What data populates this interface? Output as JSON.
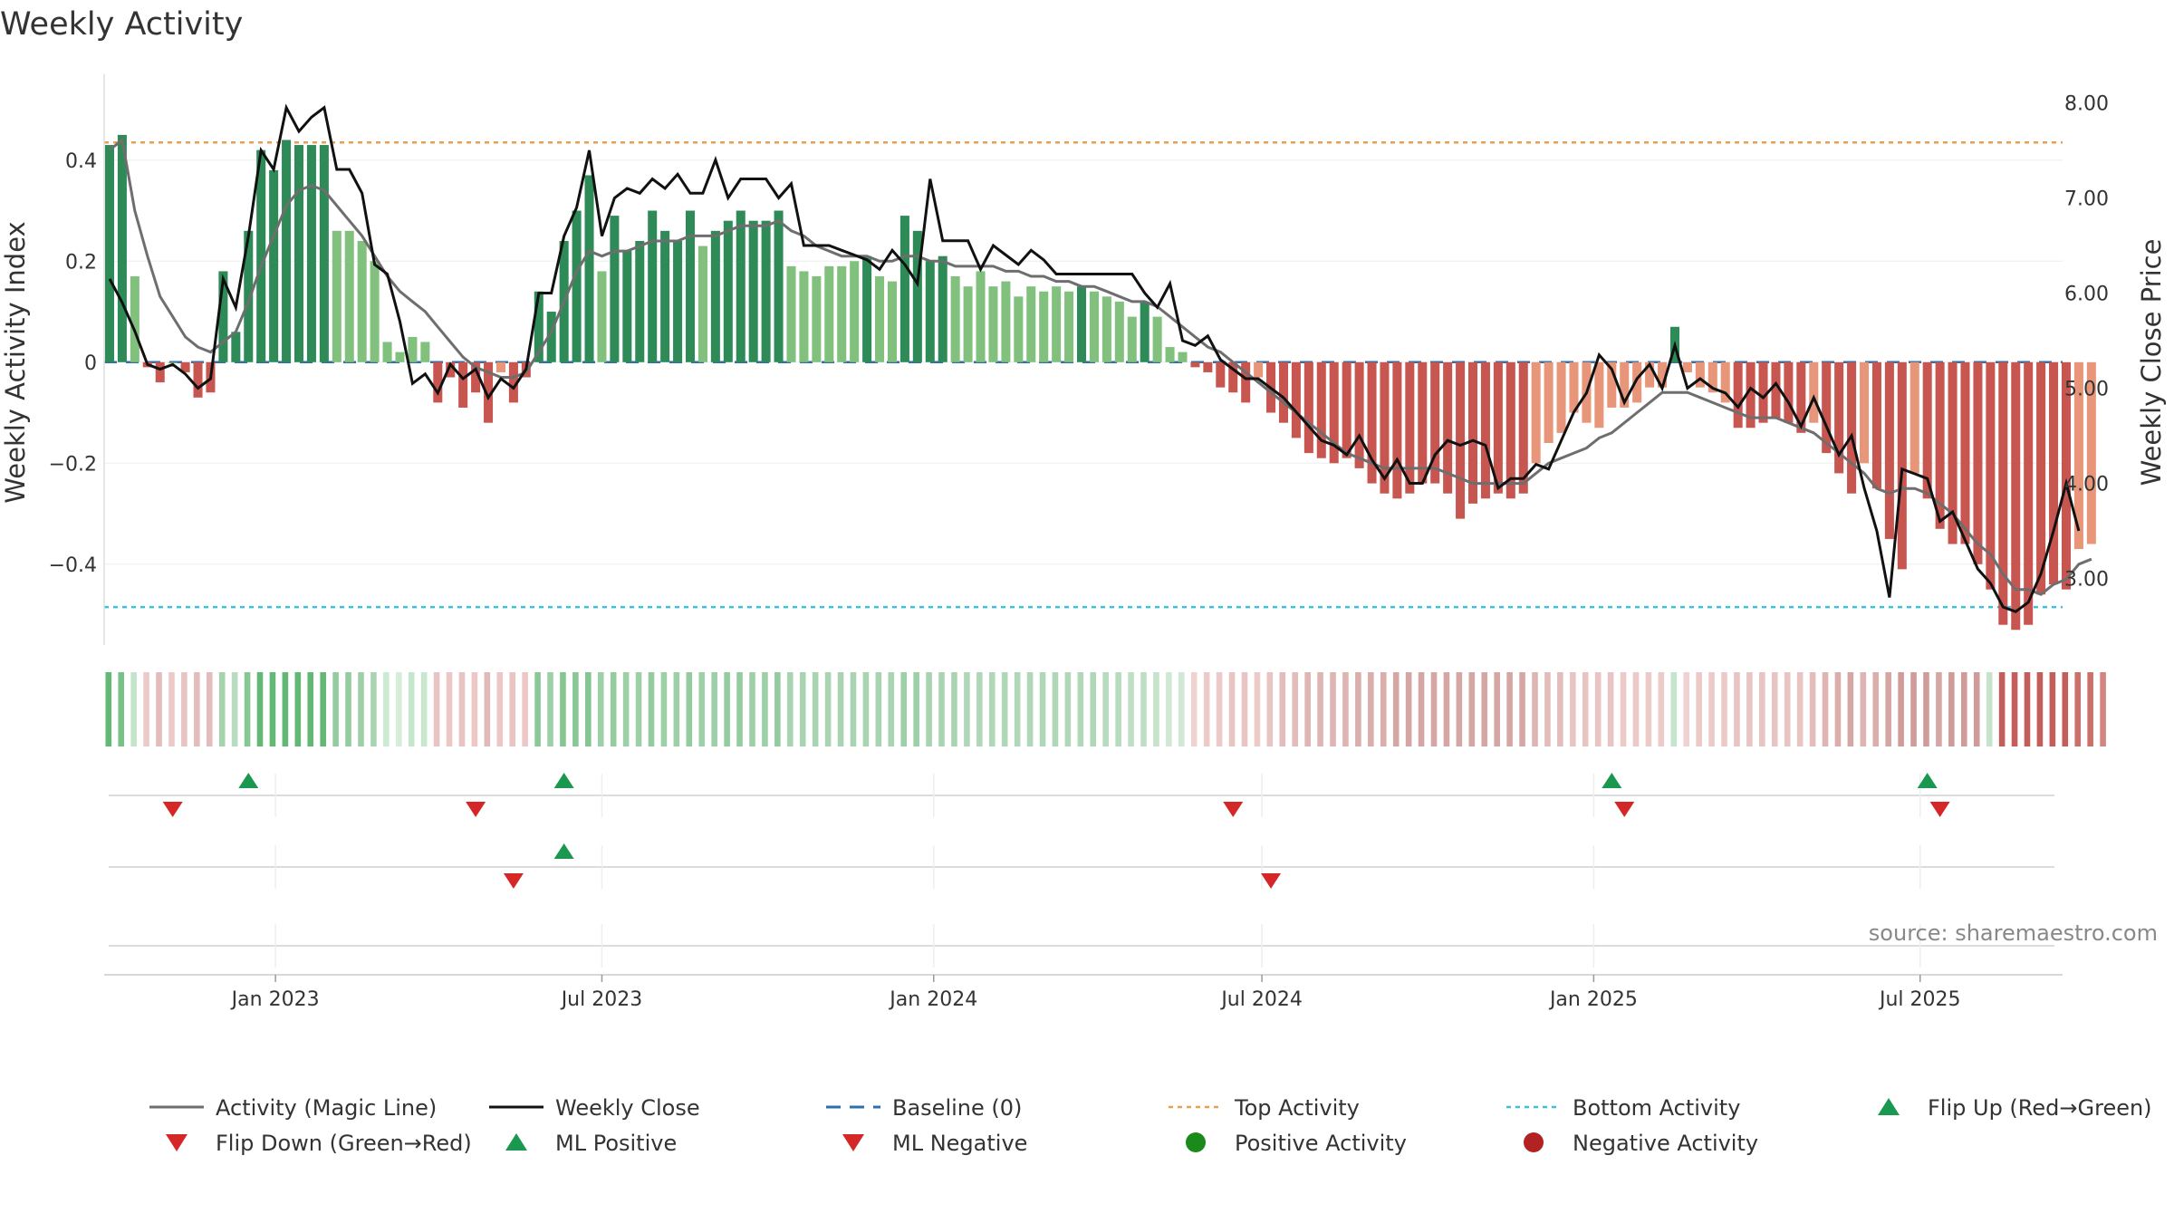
{
  "chart_data": {
    "type": "bar",
    "title": "Weekly Activity",
    "ylabel": "Weekly Activity Index",
    "y2label": "Weekly Close Price",
    "ylim": [
      -0.56,
      0.57
    ],
    "y2lim": [
      2.3,
      8.3
    ],
    "yticks": [
      {
        "value": 0.4,
        "label": "0.4"
      },
      {
        "value": 0.2,
        "label": "0.2"
      },
      {
        "value": 0,
        "label": "0"
      },
      {
        "value": -0.2,
        "label": "−0.2"
      },
      {
        "value": -0.4,
        "label": "−0.4"
      }
    ],
    "y2ticks": [
      {
        "value": 8,
        "label": "8.00"
      },
      {
        "value": 7,
        "label": "7.00"
      },
      {
        "value": 6,
        "label": "6.00"
      },
      {
        "value": 5,
        "label": "5.00"
      },
      {
        "value": 4,
        "label": "4.00"
      },
      {
        "value": 3,
        "label": "3.00"
      }
    ],
    "xticks": [
      {
        "date": "2023-01-01",
        "label": "Jan 2023"
      },
      {
        "date": "2023-07-01",
        "label": "Jul 2023"
      },
      {
        "date": "2024-01-01",
        "label": "Jan 2024"
      },
      {
        "date": "2024-07-01",
        "label": "Jul 2024"
      },
      {
        "date": "2025-01-01",
        "label": "Jan 2025"
      },
      {
        "date": "2025-07-01",
        "label": "Jul 2025"
      }
    ],
    "xrange": [
      "2022-09-28",
      "2025-09-18"
    ],
    "first_week": "2022-10-01",
    "top_activity": 0.435,
    "bottom_activity": -0.485,
    "activity": [
      0.43,
      0.45,
      0.17,
      -0.01,
      -0.04,
      0.0,
      -0.02,
      -0.07,
      -0.06,
      0.18,
      0.06,
      0.26,
      0.42,
      0.38,
      0.44,
      0.43,
      0.43,
      0.43,
      0.26,
      0.26,
      0.24,
      0.2,
      0.04,
      0.02,
      0.05,
      0.04,
      -0.08,
      -0.03,
      -0.09,
      -0.06,
      -0.12,
      -0.02,
      -0.08,
      -0.03,
      0.14,
      0.1,
      0.24,
      0.3,
      0.37,
      0.18,
      0.29,
      0.22,
      0.24,
      0.3,
      0.26,
      0.24,
      0.3,
      0.23,
      0.26,
      0.28,
      0.3,
      0.28,
      0.28,
      0.3,
      0.19,
      0.18,
      0.17,
      0.19,
      0.19,
      0.2,
      0.21,
      0.17,
      0.16,
      0.29,
      0.26,
      0.2,
      0.21,
      0.17,
      0.15,
      0.18,
      0.15,
      0.16,
      0.13,
      0.15,
      0.14,
      0.15,
      0.14,
      0.15,
      0.14,
      0.13,
      0.12,
      0.09,
      0.12,
      0.09,
      0.03,
      0.02,
      -0.01,
      -0.02,
      -0.05,
      -0.06,
      -0.08,
      -0.03,
      -0.1,
      -0.12,
      -0.15,
      -0.18,
      -0.19,
      -0.2,
      -0.19,
      -0.21,
      -0.24,
      -0.26,
      -0.27,
      -0.26,
      -0.24,
      -0.24,
      -0.26,
      -0.31,
      -0.28,
      -0.27,
      -0.26,
      -0.27,
      -0.26,
      -0.2,
      -0.16,
      -0.14,
      -0.1,
      -0.12,
      -0.13,
      -0.09,
      -0.09,
      -0.08,
      -0.05,
      -0.05,
      0.07,
      -0.02,
      -0.05,
      -0.06,
      -0.08,
      -0.13,
      -0.13,
      -0.12,
      -0.11,
      -0.12,
      -0.14,
      -0.12,
      -0.18,
      -0.22,
      -0.26,
      -0.2,
      -0.25,
      -0.35,
      -0.41,
      -0.22,
      -0.27,
      -0.33,
      -0.36,
      -0.36,
      -0.4,
      -0.45,
      -0.52,
      -0.53,
      -0.52,
      -0.46,
      -0.44,
      -0.45,
      -0.37,
      -0.36
    ],
    "magic_line": [
      0.42,
      0.44,
      0.3,
      0.21,
      0.13,
      0.09,
      0.05,
      0.03,
      0.02,
      0.04,
      0.06,
      0.12,
      0.19,
      0.25,
      0.31,
      0.34,
      0.35,
      0.34,
      0.31,
      0.28,
      0.25,
      0.21,
      0.17,
      0.14,
      0.12,
      0.1,
      0.07,
      0.04,
      0.01,
      -0.01,
      -0.02,
      -0.03,
      -0.03,
      -0.02,
      0.02,
      0.06,
      0.12,
      0.18,
      0.22,
      0.21,
      0.22,
      0.22,
      0.23,
      0.24,
      0.24,
      0.24,
      0.25,
      0.25,
      0.25,
      0.26,
      0.27,
      0.27,
      0.27,
      0.28,
      0.26,
      0.25,
      0.23,
      0.22,
      0.21,
      0.21,
      0.21,
      0.2,
      0.2,
      0.21,
      0.21,
      0.2,
      0.2,
      0.19,
      0.19,
      0.19,
      0.19,
      0.18,
      0.18,
      0.17,
      0.17,
      0.16,
      0.16,
      0.15,
      0.15,
      0.14,
      0.13,
      0.12,
      0.12,
      0.11,
      0.09,
      0.07,
      0.05,
      0.03,
      0.02,
      0.0,
      -0.02,
      -0.04,
      -0.06,
      -0.08,
      -0.1,
      -0.12,
      -0.14,
      -0.16,
      -0.18,
      -0.19,
      -0.2,
      -0.21,
      -0.21,
      -0.21,
      -0.21,
      -0.21,
      -0.22,
      -0.23,
      -0.24,
      -0.24,
      -0.24,
      -0.24,
      -0.24,
      -0.22,
      -0.2,
      -0.19,
      -0.18,
      -0.17,
      -0.15,
      -0.14,
      -0.12,
      -0.1,
      -0.08,
      -0.06,
      -0.06,
      -0.06,
      -0.07,
      -0.08,
      -0.09,
      -0.1,
      -0.11,
      -0.11,
      -0.11,
      -0.12,
      -0.13,
      -0.14,
      -0.16,
      -0.18,
      -0.2,
      -0.22,
      -0.25,
      -0.26,
      -0.25,
      -0.25,
      -0.26,
      -0.28,
      -0.3,
      -0.33,
      -0.36,
      -0.38,
      -0.42,
      -0.45,
      -0.45,
      -0.46,
      -0.44,
      -0.43,
      -0.4,
      -0.39
    ],
    "weekly_close": [
      6.15,
      5.9,
      5.6,
      5.25,
      5.2,
      5.25,
      5.15,
      5.0,
      5.1,
      6.15,
      5.85,
      6.6,
      7.5,
      7.3,
      7.95,
      7.7,
      7.85,
      7.95,
      7.3,
      7.3,
      7.05,
      6.3,
      6.2,
      5.7,
      5.05,
      5.15,
      4.95,
      5.25,
      5.1,
      5.2,
      4.9,
      5.1,
      5.0,
      5.2,
      6.0,
      6.0,
      6.6,
      6.9,
      7.5,
      6.6,
      7.0,
      7.1,
      7.05,
      7.2,
      7.1,
      7.25,
      7.05,
      7.05,
      7.4,
      7.0,
      7.2,
      7.2,
      7.2,
      7.0,
      7.15,
      6.5,
      6.5,
      6.5,
      6.45,
      6.4,
      6.35,
      6.25,
      6.45,
      6.3,
      6.1,
      7.2,
      6.55,
      6.55,
      6.55,
      6.25,
      6.5,
      6.4,
      6.3,
      6.45,
      6.35,
      6.2,
      6.2,
      6.2,
      6.2,
      6.2,
      6.2,
      6.2,
      6.0,
      5.85,
      6.1,
      5.5,
      5.45,
      5.55,
      5.3,
      5.2,
      5.1,
      5.1,
      5.0,
      4.9,
      4.75,
      4.6,
      4.45,
      4.4,
      4.3,
      4.5,
      4.25,
      4.05,
      4.25,
      4.0,
      4.0,
      4.3,
      4.45,
      4.4,
      4.45,
      4.4,
      3.95,
      4.05,
      4.05,
      4.2,
      4.15,
      4.45,
      4.75,
      4.95,
      5.35,
      5.2,
      4.85,
      5.1,
      5.25,
      5.0,
      5.45,
      5.0,
      5.1,
      5.0,
      4.95,
      4.8,
      5.0,
      4.9,
      5.05,
      4.85,
      4.6,
      4.9,
      4.6,
      4.3,
      4.5,
      3.95,
      3.5,
      2.8,
      4.15,
      4.1,
      4.05,
      3.6,
      3.7,
      3.4,
      3.1,
      2.95,
      2.7,
      2.65,
      2.75,
      3.05,
      3.5,
      4.0,
      3.5
    ]
  },
  "heat_band": {
    "colors": [
      "#63b875",
      "#78c287",
      "#c5e4cc",
      "#eccac8",
      "#e3bdbb",
      "#eccac8",
      "#e7c3c1",
      "#e3bdbb",
      "#e3bdbb",
      "#a4d3ad",
      "#b8dcbf",
      "#87c794",
      "#63b875",
      "#63b875",
      "#63b875",
      "#63b875",
      "#63b875",
      "#63b875",
      "#94cc9f",
      "#94cc9f",
      "#9ed0a8",
      "#a8d4b1",
      "#ccebd3",
      "#d6eed9",
      "#c4e6cb",
      "#c8e8ce",
      "#e8c4c2",
      "#ecc7c5",
      "#e7c3c1",
      "#ecc7c5",
      "#e0bab8",
      "#ecc7c5",
      "#e8c4c2",
      "#ecc7c5",
      "#8ac898",
      "#9dd0a7",
      "#84c592",
      "#8ac898",
      "#84c592",
      "#9ed0a8",
      "#94cc9f",
      "#9ed0a8",
      "#9ed0a8",
      "#94cc9f",
      "#9ed0a8",
      "#9ed0a8",
      "#94cc9f",
      "#9ed0a8",
      "#9ed0a8",
      "#94cc9f",
      "#94cc9f",
      "#9ed0a8",
      "#9ed0a8",
      "#94cc9f",
      "#a8d4b1",
      "#a8d4b1",
      "#a8d4b1",
      "#a8d4b1",
      "#a8d4b1",
      "#a8d4b1",
      "#a8d4b1",
      "#a8d4b1",
      "#a8d4b1",
      "#9ed0a8",
      "#9ed0a8",
      "#a8d4b1",
      "#a8d4b1",
      "#a8d4b1",
      "#b0d8b8",
      "#b0d8b8",
      "#b0d8b8",
      "#b0d8b8",
      "#b0d8b8",
      "#b0d8b8",
      "#b0d8b8",
      "#b0d8b8",
      "#b0d8b8",
      "#b0d8b8",
      "#b0d8b8",
      "#b7dbbf",
      "#b7dbbf",
      "#bfdfc5",
      "#bfdfc5",
      "#c7e3cc",
      "#d0e8d4",
      "#d0e8d4",
      "#f0d2d0",
      "#eccac8",
      "#eccac8",
      "#e8c4c2",
      "#e8c4c2",
      "#eccac8",
      "#e8c4c2",
      "#e3bdbb",
      "#e3bdbb",
      "#deb5b2",
      "#deb5b2",
      "#deb5b2",
      "#deb5b2",
      "#d9aeab",
      "#d9aeab",
      "#d9aeab",
      "#d5a7a4",
      "#d5a7a4",
      "#d5a7a4",
      "#d5a7a4",
      "#d5a7a4",
      "#d5a7a4",
      "#d5a7a4",
      "#d5a7a4",
      "#d5a7a4",
      "#d5a7a4",
      "#d5a7a4",
      "#deb5b2",
      "#e3bdbb",
      "#e3bdbb",
      "#e8c4c2",
      "#e8c4c2",
      "#e8c4c2",
      "#e8c4c2",
      "#eccac8",
      "#eccac8",
      "#eccac8",
      "#eccac8",
      "#c5e4cc",
      "#f0d2d0",
      "#eccac8",
      "#eccac8",
      "#eccac8",
      "#e8c4c2",
      "#e8c4c2",
      "#e8c4c2",
      "#e8c4c2",
      "#e8c4c2",
      "#e8c4c2",
      "#e3bdbb",
      "#deb5b2",
      "#d9aeab",
      "#d5a7a4",
      "#deb5b2",
      "#d9aeab",
      "#d5a7a4",
      "#d09c99",
      "#d09c99",
      "#d09c99",
      "#d5a7a4",
      "#d09c99",
      "#d09c99",
      "#d09c99",
      "#c7e3cc",
      "#c45e5a",
      "#c45e5a",
      "#c45e5a",
      "#c45e5a",
      "#c45e5a",
      "#c45e5a",
      "#cc706c",
      "#cc706c",
      "#d48580"
    ]
  },
  "signal_rows": [
    {
      "row": 1,
      "up": [
        "2022-12-17",
        "2023-06-10",
        "2025-01-11",
        "2025-07-05"
      ],
      "down": [
        "2022-11-05",
        "2023-04-22",
        "2024-06-15",
        "2025-01-18",
        "2025-07-12"
      ]
    },
    {
      "row": 2,
      "up": [
        "2023-06-10"
      ],
      "down": [
        "2023-05-13",
        "2024-07-06"
      ]
    },
    {
      "row": 3,
      "up": [],
      "down": []
    }
  ],
  "colors": {
    "pos_strong": "#2e8b57",
    "pos_light": "#82c07e",
    "neg_strong": "#c85650",
    "neg_light": "#e8967a",
    "magic_line": "#6e6e6e",
    "weekly_close": "#111111",
    "baseline": "#2f6fae",
    "top_activity": "#e8a050",
    "bottom_activity": "#3cc2d6",
    "flip_up": "#1a9850",
    "flip_down": "#d62728",
    "positive_dot": "#1a8a1a",
    "negative_dot": "#b22222"
  },
  "legend": [
    {
      "label": "Activity (Magic Line)",
      "marker": "line-grey"
    },
    {
      "label": "Weekly Close",
      "marker": "line-black"
    },
    {
      "label": "Baseline (0)",
      "marker": "dashed-blue"
    },
    {
      "label": "Top Activity",
      "marker": "dotted-orange"
    },
    {
      "label": "Bottom Activity",
      "marker": "dotted-cyan"
    },
    {
      "label": "Flip Up (Red→Green)",
      "marker": "triangle-up-green"
    },
    {
      "label": "Flip Down (Green→Red)",
      "marker": "triangle-down-red"
    },
    {
      "label": "ML Positive",
      "marker": "triangle-up-green"
    },
    {
      "label": "ML Negative",
      "marker": "triangle-down-red"
    },
    {
      "label": "Positive Activity",
      "marker": "circle-green"
    },
    {
      "label": "Negative Activity",
      "marker": "circle-red"
    }
  ],
  "source": "source: sharemaestro.com"
}
